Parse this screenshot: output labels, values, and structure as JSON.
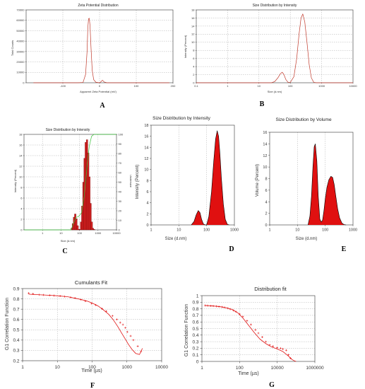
{
  "panels": [
    {
      "letter": "A",
      "chart_data": {
        "type": "line",
        "title": "Zeta Potential Distribution",
        "xlabel": "Apparent Zeta Potential (mV)",
        "ylabel": "Total Counts",
        "xscale": "linear",
        "xlim": [
          -200,
          200
        ],
        "ylim": [
          0,
          70000
        ],
        "xticks": [
          -100,
          0,
          100,
          200
        ],
        "yticks": [
          0,
          10000,
          20000,
          30000,
          40000,
          50000,
          60000,
          70000
        ],
        "grid": true,
        "series": [
          {
            "color": "#c0392b",
            "x": [
              -180,
              -60,
              -45,
              -38,
              -34,
              -32,
              -30,
              -28,
              -26,
              -23,
              -20,
              -16,
              -10,
              0,
              4,
              8,
              12,
              20,
              40,
              60,
              100,
              190
            ],
            "y": [
              0,
              0,
              300,
              8000,
              30000,
              52000,
              61500,
              62000,
              55000,
              32000,
              12000,
              3000,
              500,
              0,
              1000,
              2500,
              800,
              0,
              0,
              0,
              0,
              0
            ]
          }
        ]
      }
    },
    {
      "letter": "B",
      "chart_data": {
        "type": "line",
        "title": "Size Distribution by Intensity",
        "xlabel": "Size (d.nm)",
        "ylabel": "Intensity (Percent)",
        "xscale": "log",
        "xlim": [
          0.1,
          10000
        ],
        "ylim": [
          0,
          18
        ],
        "xticks": [
          0.1,
          1,
          10,
          100,
          1000,
          10000
        ],
        "yticks": [
          0,
          2,
          4,
          6,
          8,
          10,
          12,
          14,
          16,
          18
        ],
        "grid": true,
        "series": [
          {
            "color": "#c0392b",
            "x": [
              0.1,
              25,
              32,
              40,
              48,
              55,
              62,
              72,
              85,
              100,
              130,
              160,
              190,
              220,
              250,
              290,
              340,
              400,
              470,
              560,
              700,
              10000
            ],
            "y": [
              0,
              0,
              0.3,
              1.2,
              2.2,
              2.6,
              2.1,
              0.8,
              0.1,
              0.1,
              1.5,
              6,
              12,
              16,
              17,
              15,
              10,
              4.5,
              1.2,
              0.1,
              0,
              0
            ]
          }
        ]
      }
    },
    {
      "letter": "C",
      "chart_data": {
        "type": "bar",
        "title": "Size Distribution by Intensity",
        "xlabel": "Size (d.nm)",
        "ylabel": "Intensity (Percent)",
        "y2label": "Undersize",
        "xscale": "log",
        "xlim": [
          0.1,
          10000
        ],
        "ylim": [
          0,
          18
        ],
        "y2lim": [
          0,
          100
        ],
        "xticks": [
          1,
          10,
          100,
          1000,
          10000
        ],
        "yticks": [
          0,
          2,
          4,
          6,
          8,
          10,
          12,
          14,
          16,
          18
        ],
        "y2ticks": [
          0,
          10,
          20,
          30,
          40,
          50,
          60,
          70,
          80,
          90,
          100
        ],
        "grid": true,
        "bars": {
          "x": [
            38,
            44,
            51,
            59,
            68,
            79,
            92,
            106,
            122,
            142,
            164,
            190,
            220,
            255,
            295,
            342,
            396,
            459,
            531,
            615
          ],
          "y": [
            0.3,
            1.2,
            2.4,
            3.0,
            2.1,
            0.8,
            0.1,
            0.1,
            1.5,
            4.5,
            9.0,
            13.5,
            16.5,
            17.0,
            14.5,
            10.0,
            5.0,
            1.5,
            0.3,
            0.1
          ],
          "color": "#d42020"
        },
        "undersize": {
          "color": "#38c038",
          "x": [
            0.1,
            35,
            50,
            65,
            90,
            130,
            180,
            250,
            340,
            450,
            600,
            800,
            10000
          ],
          "y": [
            0,
            0,
            8,
            13,
            14,
            18,
            35,
            65,
            88,
            98,
            100,
            100,
            100
          ]
        }
      }
    },
    {
      "letter": "D",
      "chart_data": {
        "type": "area",
        "title": "Size Distribution by Intensity",
        "xlabel": "Size (d.nm)",
        "ylabel": "Intensity (Percent)",
        "xscale": "log",
        "xlim": [
          1,
          1000
        ],
        "ylim": [
          0,
          18
        ],
        "xticks": [
          1,
          10,
          100,
          1000
        ],
        "yticks": [
          0,
          2,
          4,
          6,
          8,
          10,
          12,
          14,
          16,
          18
        ],
        "grid": "vertical",
        "series": [
          {
            "color": "#e01010",
            "x": [
              28,
              35,
              42,
              50,
              58,
              66,
              76,
              88,
              100,
              120,
              150,
              180,
              210,
              240,
              270,
              300,
              340,
              400,
              470,
              560,
              650
            ],
            "y": [
              0,
              0.6,
              1.8,
              2.6,
              2.2,
              1.0,
              0.2,
              0,
              0,
              1.5,
              6,
              11.5,
              15.5,
              17,
              16,
              13,
              8.5,
              3.8,
              1.0,
              0.1,
              0
            ]
          }
        ]
      }
    },
    {
      "letter": "E",
      "chart_data": {
        "type": "area",
        "title": "Size Distribution by Volume",
        "xlabel": "Size (d.nm)",
        "ylabel": "Volume (Percent)",
        "xscale": "log",
        "xlim": [
          1,
          1000
        ],
        "ylim": [
          0,
          16
        ],
        "xticks": [
          1,
          10,
          100,
          1000
        ],
        "yticks": [
          0,
          2,
          4,
          6,
          8,
          10,
          12,
          14,
          16
        ],
        "grid": "vertical",
        "series": [
          {
            "color": "#e01010",
            "x": [
              24,
              28,
              32,
              36,
              40,
              44,
              50,
              56,
              64,
              72,
              80,
              90,
              100,
              115,
              135,
              160,
              185,
              210,
              240,
              280,
              330,
              400,
              480,
              560
            ],
            "y": [
              0,
              1.5,
              5,
              10,
              13.5,
              14,
              11,
              5,
              1.0,
              0.5,
              0.8,
              2.5,
              4.5,
              6.5,
              7.8,
              8.4,
              8.2,
              7.0,
              5.0,
              2.8,
              1.2,
              0.3,
              0.05,
              0
            ]
          }
        ]
      }
    },
    {
      "letter": "F",
      "chart_data": {
        "type": "scatter",
        "title": "Cumulants Fit",
        "xlabel": "Time (µs)",
        "ylabel": "G1 Correlation Function",
        "xscale": "log",
        "xlim": [
          1,
          10000
        ],
        "ylim": [
          0.2,
          0.9
        ],
        "xticks": [
          1,
          10,
          100,
          1000,
          10000
        ],
        "yticks": [
          0.2,
          0.3,
          0.4,
          0.5,
          0.6,
          0.7,
          0.8,
          0.9
        ],
        "grid": true,
        "fit": {
          "x": [
            1.5,
            3,
            6,
            10,
            20,
            40,
            70,
            100,
            150,
            200,
            300,
            400,
            550,
            700,
            900,
            1100,
            1400,
            1800,
            2300,
            2800
          ],
          "y": [
            0.845,
            0.84,
            0.835,
            0.83,
            0.82,
            0.8,
            0.78,
            0.76,
            0.73,
            0.7,
            0.65,
            0.6,
            0.53,
            0.47,
            0.41,
            0.36,
            0.31,
            0.27,
            0.26,
            0.32
          ]
        },
        "points": {
          "x": [
            1.5,
            2,
            3,
            4,
            6,
            8,
            12,
            16,
            24,
            32,
            48,
            64,
            96,
            128,
            192,
            256,
            384,
            512,
            640,
            768,
            900,
            1024,
            1280,
            1536,
            2048,
            2560
          ],
          "y": [
            0.855,
            0.85,
            0.84,
            0.838,
            0.835,
            0.832,
            0.828,
            0.823,
            0.815,
            0.808,
            0.792,
            0.778,
            0.755,
            0.74,
            0.705,
            0.68,
            0.635,
            0.6,
            0.57,
            0.55,
            0.52,
            0.48,
            0.44,
            0.4,
            0.34,
            0.29
          ]
        },
        "color": "#e01010"
      }
    },
    {
      "letter": "G",
      "chart_data": {
        "type": "scatter",
        "title": "Distribution fit",
        "xlabel": "Time (µs)",
        "ylabel": "G1 Correlation Function",
        "xscale": "log",
        "xlim": [
          1,
          1000000
        ],
        "ylim": [
          0,
          1.0
        ],
        "xticks": [
          1,
          100,
          10000,
          1000000
        ],
        "xticklabels": [
          "1",
          "100",
          "10000",
          "1000000"
        ],
        "yticks": [
          0,
          0.1,
          0.2,
          0.3,
          0.4,
          0.5,
          0.6,
          0.7,
          0.8,
          0.9,
          1.0
        ],
        "grid": true,
        "fit": {
          "x": [
            1.5,
            3,
            6,
            10,
            20,
            40,
            80,
            150,
            300,
            600,
            1200,
            2500,
            5000,
            10000,
            20000,
            40000,
            60000,
            80000,
            100000
          ],
          "y": [
            0.85,
            0.845,
            0.838,
            0.83,
            0.815,
            0.79,
            0.74,
            0.66,
            0.55,
            0.44,
            0.34,
            0.27,
            0.22,
            0.19,
            0.15,
            0.08,
            0.03,
            0.01,
            0.0
          ]
        },
        "points": {
          "x": [
            1.5,
            2,
            3,
            4,
            6,
            8,
            12,
            16,
            24,
            32,
            48,
            64,
            100,
            150,
            250,
            400,
            700,
            1000,
            1600,
            2500,
            4000,
            6000,
            10000,
            15000,
            20000,
            30000,
            40000,
            50000
          ],
          "y": [
            0.85,
            0.848,
            0.845,
            0.842,
            0.838,
            0.834,
            0.828,
            0.82,
            0.808,
            0.795,
            0.775,
            0.755,
            0.72,
            0.68,
            0.62,
            0.56,
            0.48,
            0.43,
            0.37,
            0.3,
            0.25,
            0.23,
            0.21,
            0.2,
            0.19,
            0.17,
            0.1,
            0.05
          ]
        },
        "color": "#e01010"
      }
    }
  ]
}
